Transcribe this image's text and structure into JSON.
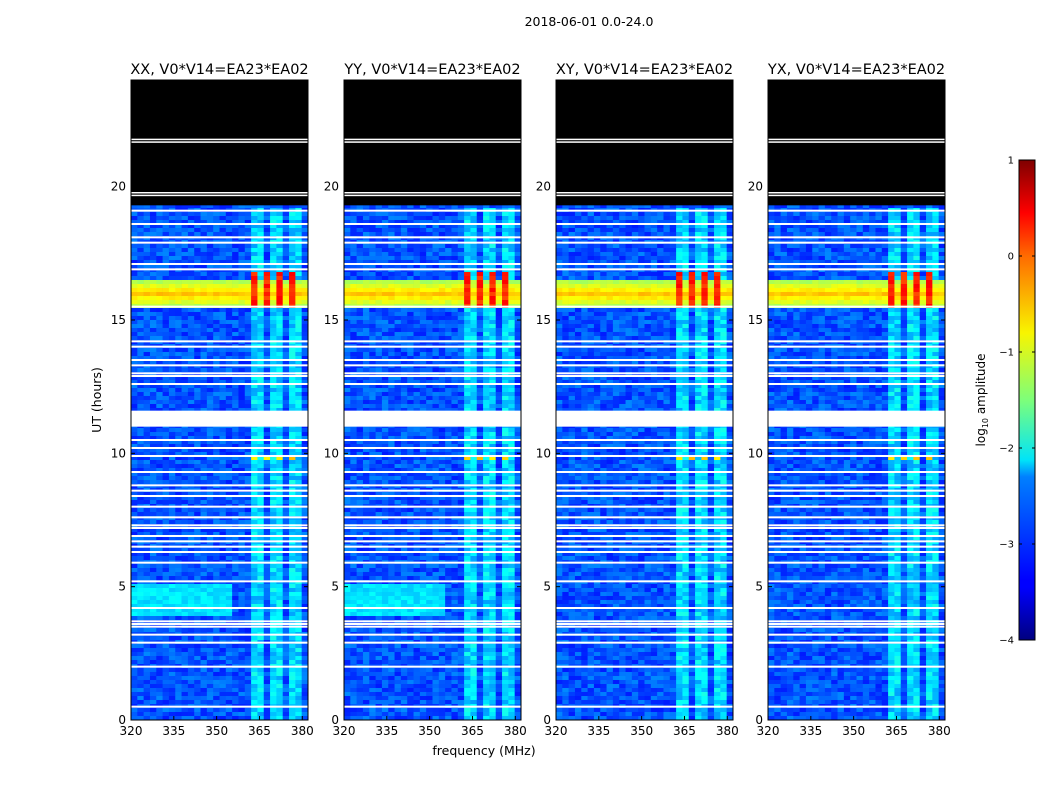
{
  "suptitle": "2018-06-01 0.0-24.0",
  "chart_data": {
    "type": "heatmap",
    "xlabel": "frequency (MHz)",
    "ylabel": "UT (hours)",
    "xlim": [
      320,
      382
    ],
    "ylim": [
      0,
      24
    ],
    "xticks": [
      320,
      335,
      350,
      365,
      380
    ],
    "yticks": [
      0,
      5,
      10,
      15,
      20
    ],
    "panels": [
      {
        "title": "XX, V0*V14=EA23*EA02",
        "polarization": "XX",
        "baseline_hot": true
      },
      {
        "title": "YY, V0*V14=EA23*EA02",
        "polarization": "YY",
        "baseline_hot": true
      },
      {
        "title": "XY, V0*V14=EA23*EA02",
        "polarization": "XY",
        "baseline_hot": false
      },
      {
        "title": "YX, V0*V14=EA23*EA02",
        "polarization": "YX",
        "baseline_hot": false
      }
    ],
    "no_data_ranges_hours": [
      [
        19.3,
        24.0
      ],
      [
        11.0,
        11.6
      ]
    ],
    "flagged_rows_hours": [
      0.5,
      2.0,
      2.9,
      3.2,
      3.5,
      3.6,
      3.7,
      4.2,
      5.2,
      5.9,
      6.3,
      6.5,
      6.7,
      6.9,
      7.2,
      7.3,
      7.6,
      8.0,
      8.4,
      8.6,
      8.8,
      9.3,
      9.9,
      10.2,
      10.5,
      12.6,
      12.9,
      13.0,
      13.3,
      13.5,
      14.0,
      14.2,
      15.5,
      16.9,
      17.1,
      17.9,
      18.1,
      18.6,
      19.1
    ],
    "rfi_features": [
      {
        "label": "persistent RFI band",
        "freq_mhz": [
          362,
          379
        ],
        "ut_hours": [
          0,
          19.3
        ],
        "log10_amp": -2.2
      },
      {
        "label": "strong RFI event",
        "freq_mhz": [
          320,
          382
        ],
        "ut_hours": [
          15.5,
          16.6
        ],
        "log10_amp": -0.9
      },
      {
        "label": "strong RFI comb",
        "freq_mhz": [
          362,
          379
        ],
        "ut_hours": [
          15.5,
          16.9
        ],
        "log10_amp": 0.1
      },
      {
        "label": "RFI comb",
        "freq_mhz": [
          362,
          379
        ],
        "ut_hours": [
          9.85,
          10.0
        ],
        "log10_amp": -0.8
      },
      {
        "label": "broadband excess (parallel hands)",
        "freq_mhz": [
          320,
          355
        ],
        "ut_hours": [
          4.0,
          5.2
        ],
        "log10_amp": -2.4
      }
    ],
    "colorbar": {
      "label": "log10 amplitude",
      "label_base": "log",
      "label_sub": "10",
      "label_rest": " amplitude",
      "min": -4,
      "max": 1,
      "ticks": [
        1,
        0,
        -1,
        -2,
        -3,
        -4
      ],
      "tick_labels": [
        "1",
        "0",
        "−1",
        "−2",
        "−3",
        "−4"
      ],
      "colormap": "jet"
    }
  }
}
